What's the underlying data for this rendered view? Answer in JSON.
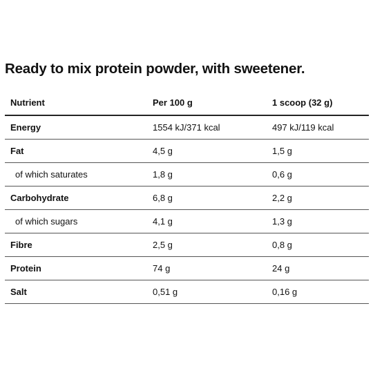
{
  "title": "Ready to mix protein powder, with sweetener.",
  "table": {
    "headers": {
      "nutrient": "Nutrient",
      "per100": "Per 100 g",
      "scoop": "1 scoop (32 g)"
    },
    "rows": [
      {
        "name": "Energy",
        "per100": "1554 kJ/371 kcal",
        "scoop": "497 kJ/119 kcal"
      },
      {
        "name": "Fat",
        "per100": "4,5 g",
        "scoop": "1,5 g"
      },
      {
        "name": "of which saturates",
        "per100": "1,8 g",
        "scoop": "0,6 g"
      },
      {
        "name": "Carbohydrate",
        "per100": "6,8 g",
        "scoop": "2,2 g"
      },
      {
        "name": "of which sugars",
        "per100": "4,1 g",
        "scoop": "1,3 g"
      },
      {
        "name": "Fibre",
        "per100": "2,5 g",
        "scoop": "0,8 g"
      },
      {
        "name": "Protein",
        "per100": "74 g",
        "scoop": "24 g"
      },
      {
        "name": "Salt",
        "per100": "0,51 g",
        "scoop": "0,16 g"
      }
    ]
  }
}
